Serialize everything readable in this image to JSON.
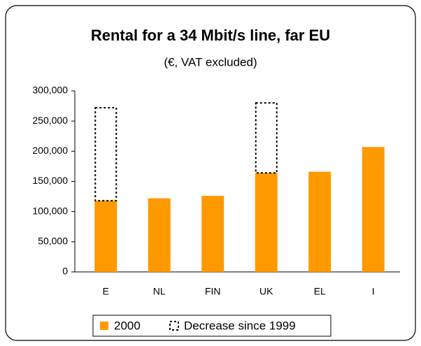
{
  "chart_data": {
    "type": "bar",
    "title": "Rental for a 34 Mbit/s line, far EU",
    "subtitle": "(€, VAT excluded)",
    "categories": [
      "E",
      "NL",
      "FIN",
      "UK",
      "EL",
      "I"
    ],
    "series": [
      {
        "name": "2000",
        "color": "#ff9900",
        "values": [
          118000,
          122000,
          126000,
          164000,
          166000,
          207000
        ]
      },
      {
        "name": "Decrease since 1999",
        "color": "#000000",
        "values": [
          154000,
          null,
          null,
          116000,
          null,
          null
        ]
      }
    ],
    "ylim": [
      0,
      300000
    ],
    "yticks": [
      0,
      {
        "value": 50000,
        "label": "50,000"
      },
      {
        "value": 100000,
        "label": "100,000"
      },
      {
        "value": 150000,
        "label": "150,000"
      },
      {
        "value": 200000,
        "label": "200,000"
      },
      {
        "value": 250000,
        "label": "250,000"
      },
      {
        "value": 300000,
        "label": "300,000"
      }
    ],
    "legend": "bottom"
  }
}
